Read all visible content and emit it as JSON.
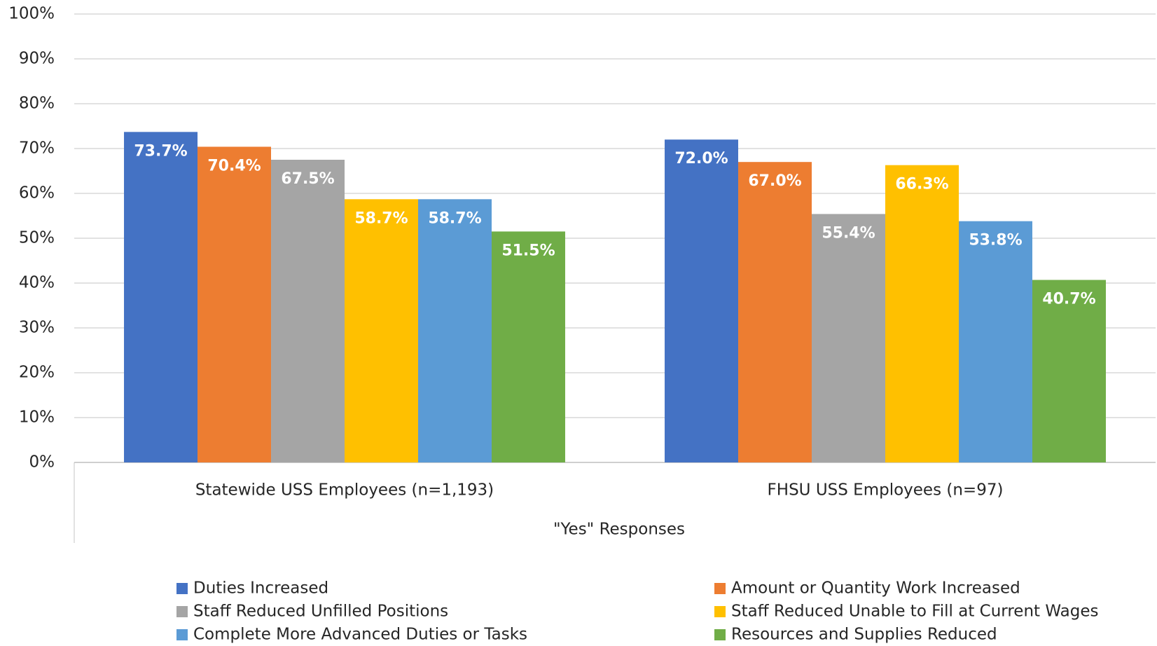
{
  "chart_data": {
    "type": "bar",
    "x_label": "\"Yes\" Responses",
    "categories": [
      "Statewide USS Employees (n=1,193)",
      "FHSU USS Employees (n=97)"
    ],
    "series": [
      {
        "name": "Duties Increased",
        "color": "#4472c4",
        "values": [
          73.7,
          72.0
        ],
        "value_labels": [
          "73.7%",
          "72.0%"
        ]
      },
      {
        "name": "Amount or Quantity Work Increased",
        "color": "#ed7d31",
        "values": [
          70.4,
          67.0
        ],
        "value_labels": [
          "70.4%",
          "67.0%"
        ]
      },
      {
        "name": "Staff Reduced Unfilled Positions",
        "color": "#a5a5a5",
        "values": [
          67.5,
          55.4
        ],
        "value_labels": [
          "67.5%",
          "55.4%"
        ]
      },
      {
        "name": "Staff Reduced Unable to Fill at Current Wages",
        "color": "#ffc000",
        "values": [
          58.7,
          66.3
        ],
        "value_labels": [
          "58.7%",
          "66.3%"
        ]
      },
      {
        "name": "Complete More Advanced Duties or Tasks",
        "color": "#5b9bd5",
        "values": [
          58.7,
          53.8
        ],
        "value_labels": [
          "58.7%",
          "53.8%"
        ]
      },
      {
        "name": "Resources and Supplies Reduced",
        "color": "#70ad47",
        "values": [
          51.5,
          40.7
        ],
        "value_labels": [
          "51.5%",
          "40.7%"
        ]
      }
    ],
    "ylim": [
      0,
      100
    ],
    "yticks": [
      {
        "value": 0,
        "label": "0%"
      },
      {
        "value": 10,
        "label": "10%"
      },
      {
        "value": 20,
        "label": "20%"
      },
      {
        "value": 30,
        "label": "30%"
      },
      {
        "value": 40,
        "label": "40%"
      },
      {
        "value": 50,
        "label": "50%"
      },
      {
        "value": 60,
        "label": "60%"
      },
      {
        "value": 70,
        "label": "70%"
      },
      {
        "value": 80,
        "label": "80%"
      },
      {
        "value": 90,
        "label": "90%"
      },
      {
        "value": 100,
        "label": "100%"
      }
    ],
    "grid": true,
    "legend": "bottom"
  }
}
